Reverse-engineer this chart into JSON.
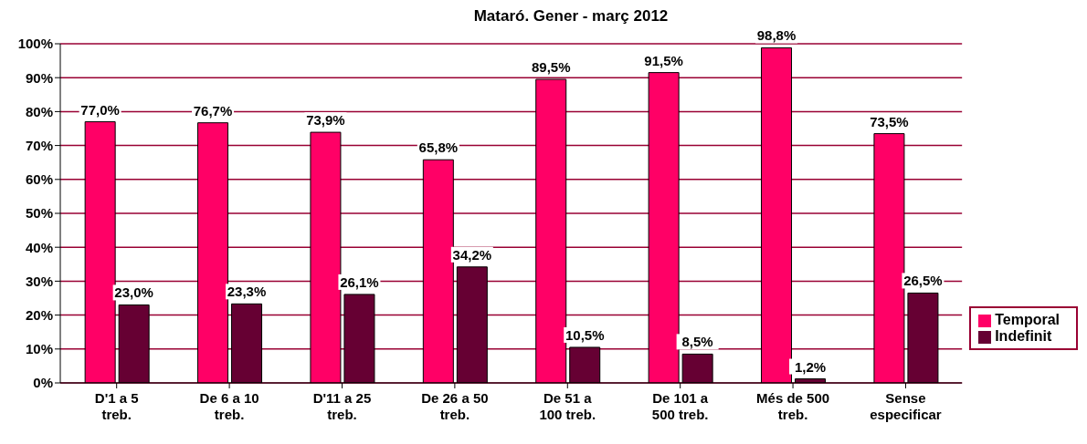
{
  "chart_data": {
    "type": "bar",
    "title": "Mataró. Gener - març 2012",
    "categories": [
      "D'1 a 5 treb.",
      "De 6 a 10 treb.",
      "D'11 a 25 treb.",
      "De 26 a 50 treb.",
      "De 51 a 100 treb.",
      "De 101 a 500 treb.",
      "Més de 500 treb.",
      "Sense especificar"
    ],
    "series": [
      {
        "name": "Temporal",
        "color": "#ff0066",
        "values": [
          77.0,
          76.7,
          73.9,
          65.8,
          89.5,
          91.5,
          98.8,
          73.5
        ],
        "value_labels": [
          "77,0%",
          "76,7%",
          "73,9%",
          "65,8%",
          "89,5%",
          "91,5%",
          "98,8%",
          "73,5%"
        ]
      },
      {
        "name": "Indefinit",
        "color": "#660033",
        "values": [
          23.0,
          23.3,
          26.1,
          34.2,
          10.5,
          8.5,
          1.2,
          26.5
        ],
        "value_labels": [
          "23,0%",
          "23,3%",
          "26,1%",
          "34,2%",
          "10,5%",
          "8,5%",
          "1,2%",
          "26,5%"
        ]
      }
    ],
    "ylim": [
      0,
      100
    ],
    "yticks": [
      {
        "value": 0,
        "label": "0%"
      },
      {
        "value": 10,
        "label": "10%"
      },
      {
        "value": 20,
        "label": "20%"
      },
      {
        "value": 30,
        "label": "30%"
      },
      {
        "value": 40,
        "label": "40%"
      },
      {
        "value": 50,
        "label": "50%"
      },
      {
        "value": 60,
        "label": "60%"
      },
      {
        "value": 70,
        "label": "70%"
      },
      {
        "value": 80,
        "label": "80%"
      },
      {
        "value": 90,
        "label": "90%"
      },
      {
        "value": 100,
        "label": "100%"
      }
    ],
    "grid": "y",
    "legend": "right"
  }
}
